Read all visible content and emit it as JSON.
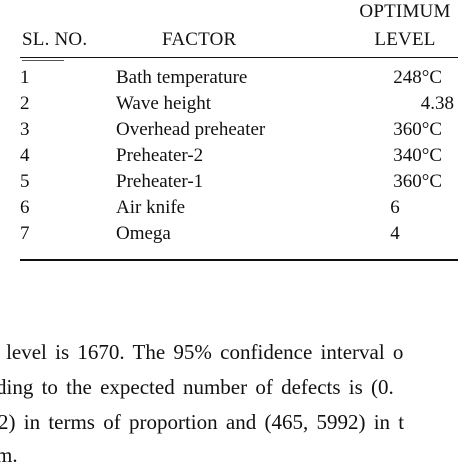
{
  "table": {
    "headers": {
      "sl_no": "SL. NO.",
      "factor": "FACTOR",
      "level_line1": "OPTIMUM",
      "level_line2": "LEVEL"
    },
    "rows": [
      {
        "no": "1",
        "factor": "Bath temperature",
        "level": "248°C"
      },
      {
        "no": "2",
        "factor": "Wave height",
        "level": "4.38"
      },
      {
        "no": "3",
        "factor": "Overhead preheater",
        "level": "360°C"
      },
      {
        "no": "4",
        "factor": "Preheater-2",
        "level": "340°C"
      },
      {
        "no": "5",
        "factor": "Preheater-1",
        "level": "360°C"
      },
      {
        "no": "6",
        "factor": "Air knife",
        "level": "6"
      },
      {
        "no": "7",
        "factor": "Omega",
        "level": "4"
      }
    ]
  },
  "body_text": {
    "line1": "t level is 1670. The 95% confidence interval o",
    "line2": "ding to the expected number of defects is (0.",
    "line3": "2) in terms of proportion and (465, 5992) in t",
    "line4": "m."
  }
}
